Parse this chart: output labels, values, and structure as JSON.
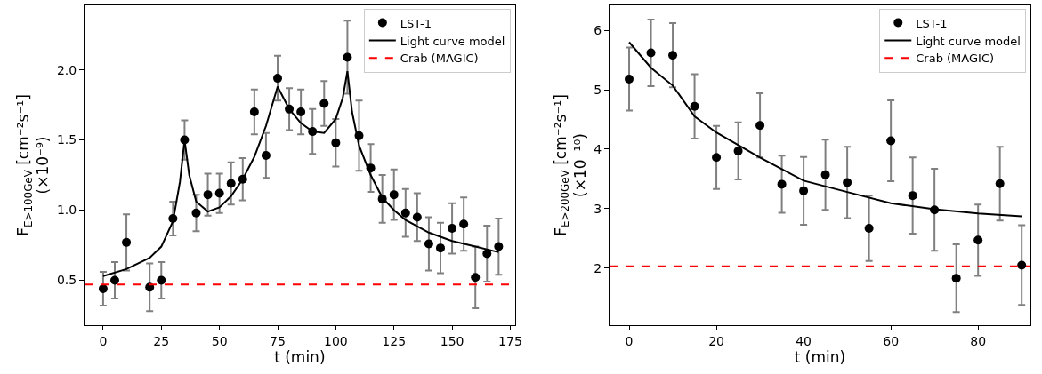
{
  "chart_data": [
    {
      "type": "scatter",
      "xlabel": "t (min)",
      "ylabel": "F$_{E>100GeV}$ [cm⁻²s⁻¹]\n(×10⁻⁹)",
      "xlim": [
        -8,
        177
      ],
      "ylim": [
        0.18,
        2.46
      ],
      "xticks": [
        0,
        25,
        50,
        75,
        100,
        125,
        150,
        175
      ],
      "yticks": [
        {
          "value": 0.5,
          "label": "0.5"
        },
        {
          "value": 1.0,
          "label": "1.0"
        },
        {
          "value": 1.5,
          "label": "1.5"
        },
        {
          "value": 2.0,
          "label": "2.0"
        }
      ],
      "legend": "top right",
      "grid": false,
      "marker": "circle",
      "series": [
        {
          "name": "LST-1",
          "color": "#000000",
          "x": [
            0,
            5,
            10,
            20,
            25,
            30,
            35,
            40,
            45,
            50,
            55,
            60,
            65,
            70,
            75,
            80,
            85,
            90,
            95,
            100,
            105,
            110,
            115,
            120,
            125,
            130,
            135,
            140,
            145,
            150,
            155,
            160,
            165,
            170
          ],
          "values": [
            0.44,
            0.5,
            0.77,
            0.45,
            0.5,
            0.94,
            1.5,
            0.98,
            1.11,
            1.12,
            1.19,
            1.22,
            1.7,
            1.39,
            1.94,
            1.72,
            1.7,
            1.56,
            1.76,
            1.48,
            2.09,
            1.53,
            1.3,
            1.08,
            1.11,
            0.98,
            0.95,
            0.76,
            0.73,
            0.87,
            0.9,
            0.52,
            0.69,
            0.74
          ],
          "errors": [
            0.12,
            0.13,
            0.2,
            0.17,
            0.13,
            0.12,
            0.14,
            0.13,
            0.15,
            0.14,
            0.15,
            0.15,
            0.16,
            0.16,
            0.16,
            0.15,
            0.16,
            0.16,
            0.16,
            0.17,
            0.26,
            0.25,
            0.17,
            0.17,
            0.18,
            0.17,
            0.17,
            0.19,
            0.18,
            0.18,
            0.19,
            0.22,
            0.2,
            0.2
          ]
        },
        {
          "name": "Light curve model",
          "type": "line",
          "color": "#000000",
          "marker": "none",
          "line_style": "solid",
          "x": [
            0,
            10,
            20,
            25,
            30,
            33,
            35,
            37,
            40,
            45,
            50,
            55,
            60,
            65,
            70,
            75,
            80,
            85,
            90,
            95,
            100,
            103,
            105,
            107,
            110,
            115,
            120,
            125,
            130,
            140,
            150,
            160,
            170
          ],
          "values": [
            0.53,
            0.58,
            0.66,
            0.74,
            0.92,
            1.2,
            1.5,
            1.25,
            1.06,
            0.99,
            1.02,
            1.1,
            1.22,
            1.38,
            1.6,
            1.88,
            1.72,
            1.62,
            1.56,
            1.55,
            1.65,
            1.8,
            1.99,
            1.7,
            1.46,
            1.25,
            1.09,
            1.0,
            0.93,
            0.84,
            0.78,
            0.74,
            0.7
          ]
        }
      ],
      "ref_lines": [
        {
          "axis": "y",
          "value": 0.47,
          "label": "Crab (MAGIC)",
          "color": "#ff0000",
          "line_style": "dashed"
        }
      ]
    },
    {
      "type": "scatter",
      "xlabel": "t (min)",
      "ylabel": "F$_{E>200GeV}$ [cm⁻²s⁻¹]\n(×10⁻¹⁰)",
      "xlim": [
        -4.5,
        92
      ],
      "ylim": [
        1.04,
        6.42
      ],
      "xticks": [
        0,
        20,
        40,
        60,
        80
      ],
      "yticks": [
        2,
        3,
        4,
        5,
        6
      ],
      "legend": "top right",
      "grid": false,
      "marker": "circle",
      "series": [
        {
          "name": "LST-1",
          "color": "#000000",
          "x": [
            0,
            5,
            10,
            15,
            20,
            25,
            30,
            35,
            40,
            45,
            50,
            55,
            60,
            65,
            70,
            75,
            80,
            85,
            90
          ],
          "values": [
            5.18,
            5.62,
            5.58,
            4.72,
            3.86,
            3.97,
            4.4,
            3.41,
            3.3,
            3.57,
            3.44,
            2.67,
            4.14,
            3.22,
            2.98,
            1.83,
            2.47,
            3.42,
            2.05
          ],
          "errors": [
            0.53,
            0.56,
            0.54,
            0.54,
            0.53,
            0.48,
            0.54,
            0.48,
            0.57,
            0.59,
            0.6,
            0.55,
            0.68,
            0.64,
            0.69,
            0.57,
            0.6,
            0.62,
            0.67
          ]
        },
        {
          "name": "Light curve model",
          "type": "line",
          "color": "#000000",
          "marker": "none",
          "line_style": "solid",
          "x": [
            0,
            5,
            10,
            15,
            20,
            30,
            40,
            50,
            60,
            70,
            80,
            90
          ],
          "values": [
            5.8,
            5.37,
            5.07,
            4.55,
            4.28,
            3.86,
            3.47,
            3.28,
            3.09,
            2.99,
            2.92,
            2.87
          ]
        }
      ],
      "ref_lines": [
        {
          "axis": "y",
          "value": 2.03,
          "label": "Crab (MAGIC)",
          "color": "#ff0000",
          "line_style": "dashed"
        }
      ]
    }
  ]
}
